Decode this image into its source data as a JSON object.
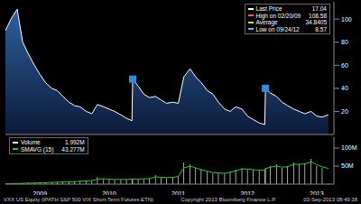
{
  "chart_data": [
    {
      "type": "area",
      "title": "VXX US Equity (iPATH S&P 500 VIX Short-Term Futures ETN)",
      "x": [
        2009.0,
        2009.08,
        2009.17,
        2009.25,
        2009.33,
        2009.42,
        2009.5,
        2009.58,
        2009.67,
        2009.75,
        2009.83,
        2009.92,
        2010.0,
        2010.08,
        2010.17,
        2010.25,
        2010.33,
        2010.42,
        2010.5,
        2010.58,
        2010.67,
        2010.75,
        2010.83,
        2010.84,
        2010.92,
        2011.0,
        2011.08,
        2011.17,
        2011.25,
        2011.33,
        2011.42,
        2011.5,
        2011.58,
        2011.67,
        2011.75,
        2011.83,
        2011.92,
        2012.0,
        2012.08,
        2012.17,
        2012.25,
        2012.33,
        2012.42,
        2012.5,
        2012.58,
        2012.67,
        2012.75,
        2012.76,
        2012.83,
        2012.92,
        2013.0,
        2013.08,
        2013.17,
        2013.25,
        2013.33,
        2013.42,
        2013.5,
        2013.58,
        2013.67
      ],
      "series": [
        {
          "color": "#ffffff",
          "values": [
            90,
            100,
            108.58,
            80,
            70,
            60,
            52,
            45,
            40,
            38,
            33,
            28,
            25,
            24,
            20,
            18,
            26,
            24,
            22,
            20,
            17,
            14,
            12,
            48,
            42,
            35,
            32,
            33,
            30,
            27,
            28,
            27,
            50,
            57,
            50,
            45,
            38,
            35,
            28,
            22,
            20,
            24,
            22,
            16,
            13,
            10,
            8.57,
            40,
            36,
            33,
            28,
            25,
            22,
            20,
            18,
            20,
            16,
            15,
            17.04
          ]
        },
        {
          "type": "scatter",
          "marker": "square",
          "color": "#2a8fe0",
          "values": [
            null,
            null,
            null,
            null,
            null,
            null,
            null,
            null,
            null,
            null,
            null,
            null,
            null,
            null,
            null,
            null,
            null,
            null,
            null,
            null,
            null,
            null,
            null,
            48,
            null,
            null,
            null,
            null,
            null,
            null,
            null,
            null,
            null,
            null,
            null,
            null,
            null,
            null,
            null,
            null,
            null,
            null,
            null,
            null,
            null,
            null,
            null,
            40,
            null,
            null,
            null,
            null,
            null,
            null,
            null,
            null,
            null,
            null,
            null
          ]
        }
      ],
      "xlim": [
        2009.0,
        2013.75
      ],
      "ylim": [
        0,
        115
      ],
      "yticks": [
        20,
        40,
        60,
        80,
        100
      ],
      "tick_labels": "y",
      "grid": false,
      "legend": "top-right",
      "legend_items": [
        {
          "label": "Last Price",
          "value": 17.04
        },
        {
          "label": "High on 02/20/09",
          "value": 108.58
        },
        {
          "label": "Average",
          "value": 34.8405
        },
        {
          "label": "Low on 09/24/12",
          "value": 8.57
        }
      ]
    },
    {
      "type": "bar",
      "x": [
        2009.0,
        2009.08,
        2009.17,
        2009.25,
        2009.33,
        2009.42,
        2009.5,
        2009.58,
        2009.67,
        2009.75,
        2009.83,
        2009.92,
        2010.0,
        2010.08,
        2010.17,
        2010.25,
        2010.33,
        2010.42,
        2010.5,
        2010.58,
        2010.67,
        2010.75,
        2010.83,
        2010.84,
        2010.92,
        2011.0,
        2011.08,
        2011.17,
        2011.25,
        2011.33,
        2011.42,
        2011.5,
        2011.58,
        2011.67,
        2011.75,
        2011.83,
        2011.92,
        2012.0,
        2012.08,
        2012.17,
        2012.25,
        2012.33,
        2012.42,
        2012.5,
        2012.58,
        2012.67,
        2012.75,
        2012.76,
        2012.83,
        2012.92,
        2013.0,
        2013.08,
        2013.17,
        2013.25,
        2013.33,
        2013.42,
        2013.5,
        2013.58,
        2013.67
      ],
      "series": [
        {
          "name": "Volume",
          "color": "#e8e8e8",
          "values": [
            1,
            1,
            2,
            3,
            3,
            4,
            4,
            5,
            5,
            6,
            6,
            7,
            8,
            9,
            10,
            10,
            20,
            15,
            14,
            12,
            13,
            14,
            15,
            15,
            14,
            15,
            16,
            25,
            18,
            17,
            20,
            22,
            60,
            55,
            45,
            40,
            35,
            30,
            32,
            30,
            35,
            40,
            45,
            42,
            40,
            38,
            40,
            45,
            50,
            55,
            45,
            50,
            60,
            55,
            58,
            70,
            50,
            45,
            1.992
          ]
        },
        {
          "name": "SMAVG (15)",
          "type": "line",
          "color": "#22cc22",
          "values": [
            1,
            1,
            2,
            2,
            3,
            3,
            4,
            4,
            5,
            5,
            6,
            6,
            7,
            8,
            9,
            10,
            14,
            15,
            14,
            13,
            13,
            13,
            14,
            14,
            14,
            15,
            15,
            20,
            19,
            18,
            19,
            21,
            45,
            50,
            45,
            40,
            36,
            32,
            31,
            30,
            33,
            37,
            42,
            42,
            40,
            39,
            39,
            43,
            47,
            50,
            47,
            48,
            55,
            55,
            56,
            62,
            54,
            48,
            43.277
          ]
        }
      ],
      "xlim": [
        2009.0,
        2013.75
      ],
      "xticks": [
        {
          "value": 2009.5,
          "label": "2009"
        },
        {
          "value": 2010.5,
          "label": "2010"
        },
        {
          "value": 2011.5,
          "label": "2011"
        },
        {
          "value": 2012.5,
          "label": "2012"
        },
        {
          "value": 2013.5,
          "label": "2013"
        }
      ],
      "ylim": [
        0,
        130
      ],
      "yticks": [
        {
          "value": 50,
          "label": "50M"
        },
        {
          "value": 100,
          "label": "100M"
        }
      ],
      "grid": false,
      "legend": "top-left",
      "legend_items": [
        {
          "label": "Volume",
          "value": "1.992M"
        },
        {
          "label": "SMAVG (15)",
          "value": "43.277M"
        }
      ]
    }
  ],
  "footer": {
    "copyright": "Copyright 2013 Bloomberg Finance L.P.",
    "timestamp": "03-Sep-2013 08:49:38"
  }
}
